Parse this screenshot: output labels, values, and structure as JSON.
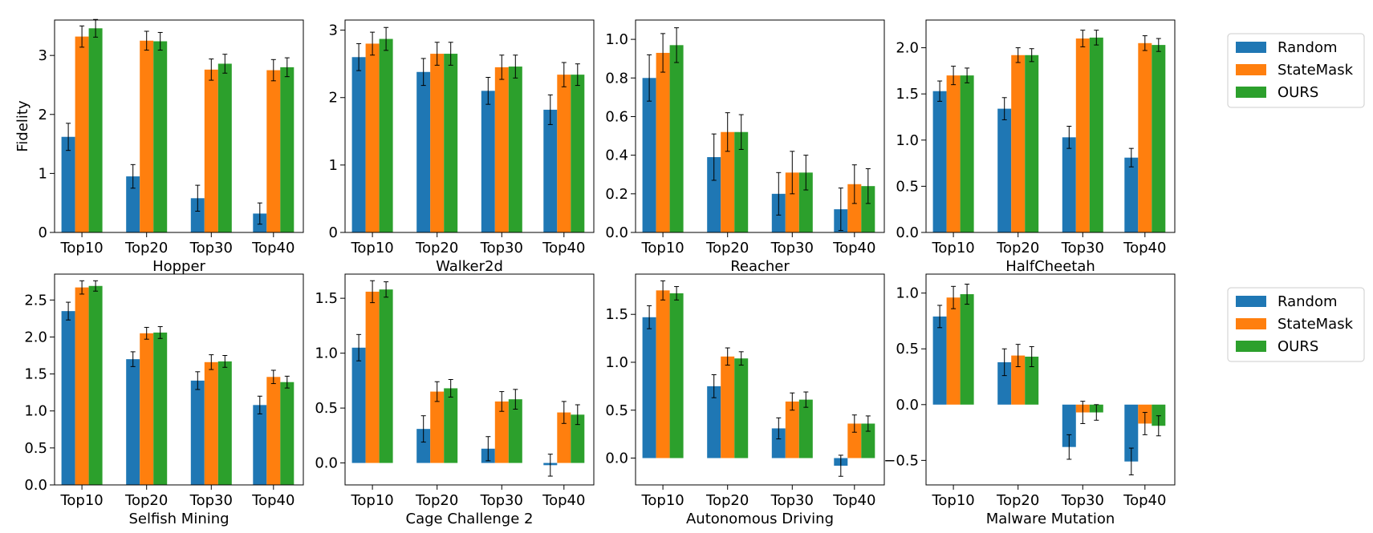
{
  "chart_data": [
    {
      "type": "bar",
      "xlabel": "Hopper",
      "ylabel": "Fidelity",
      "categories": [
        "Top10",
        "Top20",
        "Top30",
        "Top40"
      ],
      "ylim": [
        0,
        3.6
      ],
      "yticks": [
        0,
        1,
        2,
        3
      ],
      "series": [
        {
          "name": "Random",
          "values": [
            1.62,
            0.95,
            0.58,
            0.32
          ],
          "errors": [
            0.23,
            0.2,
            0.22,
            0.18
          ]
        },
        {
          "name": "StateMask",
          "values": [
            3.32,
            3.25,
            2.76,
            2.75
          ],
          "errors": [
            0.18,
            0.16,
            0.18,
            0.18
          ]
        },
        {
          "name": "OURS",
          "values": [
            3.46,
            3.24,
            2.86,
            2.8
          ],
          "errors": [
            0.15,
            0.15,
            0.16,
            0.16
          ]
        }
      ]
    },
    {
      "type": "bar",
      "xlabel": "Walker2d",
      "ylabel": "",
      "categories": [
        "Top10",
        "Top20",
        "Top30",
        "Top40"
      ],
      "ylim": [
        0,
        3.15
      ],
      "yticks": [
        0,
        1,
        2,
        3
      ],
      "series": [
        {
          "name": "Random",
          "values": [
            2.6,
            2.38,
            2.1,
            1.82
          ],
          "errors": [
            0.2,
            0.2,
            0.2,
            0.22
          ]
        },
        {
          "name": "StateMask",
          "values": [
            2.8,
            2.65,
            2.45,
            2.34
          ],
          "errors": [
            0.17,
            0.17,
            0.18,
            0.18
          ]
        },
        {
          "name": "OURS",
          "values": [
            2.87,
            2.65,
            2.46,
            2.34
          ],
          "errors": [
            0.17,
            0.17,
            0.17,
            0.16
          ]
        }
      ]
    },
    {
      "type": "bar",
      "xlabel": "Reacher",
      "ylabel": "",
      "categories": [
        "Top10",
        "Top20",
        "Top30",
        "Top40"
      ],
      "ylim": [
        0,
        1.1
      ],
      "yticks": [
        0,
        0.2,
        0.4,
        0.6,
        0.8,
        1.0
      ],
      "series": [
        {
          "name": "Random",
          "values": [
            0.8,
            0.39,
            0.2,
            0.12
          ],
          "errors": [
            0.12,
            0.12,
            0.11,
            0.11
          ]
        },
        {
          "name": "StateMask",
          "values": [
            0.93,
            0.52,
            0.31,
            0.25
          ],
          "errors": [
            0.1,
            0.1,
            0.11,
            0.1
          ]
        },
        {
          "name": "OURS",
          "values": [
            0.97,
            0.52,
            0.31,
            0.24
          ],
          "errors": [
            0.09,
            0.09,
            0.09,
            0.09
          ]
        }
      ]
    },
    {
      "type": "bar",
      "xlabel": "HalfCheetah",
      "ylabel": "",
      "categories": [
        "Top10",
        "Top20",
        "Top30",
        "Top40"
      ],
      "ylim": [
        0,
        2.3
      ],
      "yticks": [
        0,
        0.5,
        1.0,
        1.5,
        2.0
      ],
      "series": [
        {
          "name": "Random",
          "values": [
            1.53,
            1.34,
            1.03,
            0.81
          ],
          "errors": [
            0.11,
            0.12,
            0.12,
            0.1
          ]
        },
        {
          "name": "StateMask",
          "values": [
            1.7,
            1.92,
            2.1,
            2.05
          ],
          "errors": [
            0.1,
            0.08,
            0.09,
            0.08
          ]
        },
        {
          "name": "OURS",
          "values": [
            1.7,
            1.92,
            2.11,
            2.03
          ],
          "errors": [
            0.08,
            0.07,
            0.08,
            0.07
          ]
        }
      ]
    },
    {
      "type": "bar",
      "xlabel": "Selfish Mining",
      "ylabel": "",
      "categories": [
        "Top10",
        "Top20",
        "Top30",
        "Top40"
      ],
      "ylim": [
        0,
        2.85
      ],
      "yticks": [
        0,
        0.5,
        1.0,
        1.5,
        2.0,
        2.5
      ],
      "series": [
        {
          "name": "Random",
          "values": [
            2.35,
            1.7,
            1.41,
            1.08
          ],
          "errors": [
            0.12,
            0.1,
            0.12,
            0.12
          ]
        },
        {
          "name": "StateMask",
          "values": [
            2.67,
            2.05,
            1.66,
            1.46
          ],
          "errors": [
            0.09,
            0.08,
            0.1,
            0.09
          ]
        },
        {
          "name": "OURS",
          "values": [
            2.69,
            2.06,
            1.67,
            1.39
          ],
          "errors": [
            0.07,
            0.08,
            0.08,
            0.08
          ]
        }
      ]
    },
    {
      "type": "bar",
      "xlabel": "Cage Challenge 2",
      "ylabel": "",
      "categories": [
        "Top10",
        "Top20",
        "Top30",
        "Top40"
      ],
      "ylim": [
        -0.2,
        1.72
      ],
      "yticks": [
        0.0,
        0.5,
        1.0,
        1.5
      ],
      "series": [
        {
          "name": "Random",
          "values": [
            1.05,
            0.31,
            0.13,
            -0.02
          ],
          "errors": [
            0.12,
            0.12,
            0.11,
            0.1
          ]
        },
        {
          "name": "StateMask",
          "values": [
            1.56,
            0.65,
            0.56,
            0.46
          ],
          "errors": [
            0.1,
            0.09,
            0.09,
            0.1
          ]
        },
        {
          "name": "OURS",
          "values": [
            1.58,
            0.68,
            0.58,
            0.44
          ],
          "errors": [
            0.07,
            0.08,
            0.09,
            0.09
          ]
        }
      ]
    },
    {
      "type": "bar",
      "xlabel": "Autonomous Driving",
      "ylabel": "",
      "categories": [
        "Top10",
        "Top20",
        "Top30",
        "Top40"
      ],
      "ylim": [
        -0.28,
        1.92
      ],
      "yticks": [
        0.0,
        0.5,
        1.0,
        1.5
      ],
      "series": [
        {
          "name": "Random",
          "values": [
            1.47,
            0.75,
            0.31,
            -0.08
          ],
          "errors": [
            0.12,
            0.12,
            0.11,
            0.11
          ]
        },
        {
          "name": "StateMask",
          "values": [
            1.75,
            1.06,
            0.59,
            0.36
          ],
          "errors": [
            0.1,
            0.09,
            0.09,
            0.09
          ]
        },
        {
          "name": "OURS",
          "values": [
            1.72,
            1.04,
            0.61,
            0.36
          ],
          "errors": [
            0.07,
            0.07,
            0.08,
            0.08
          ]
        }
      ]
    },
    {
      "type": "bar",
      "xlabel": "Malware Mutation",
      "ylabel": "",
      "categories": [
        "Top10",
        "Top20",
        "Top30",
        "Top40"
      ],
      "ylim": [
        -0.72,
        1.17
      ],
      "yticks": [
        -0.5,
        0.0,
        0.5,
        1.0
      ],
      "series": [
        {
          "name": "Random",
          "values": [
            0.79,
            0.38,
            -0.38,
            -0.51
          ],
          "errors": [
            0.1,
            0.12,
            0.11,
            0.12
          ]
        },
        {
          "name": "StateMask",
          "values": [
            0.96,
            0.44,
            -0.07,
            -0.17
          ],
          "errors": [
            0.1,
            0.1,
            0.1,
            0.1
          ]
        },
        {
          "name": "OURS",
          "values": [
            0.99,
            0.43,
            -0.07,
            -0.19
          ],
          "errors": [
            0.09,
            0.09,
            0.07,
            0.09
          ]
        }
      ]
    }
  ],
  "legends": [
    {
      "entries": [
        {
          "label": "Random",
          "color": "#1f77b4"
        },
        {
          "label": "StateMask",
          "color": "#ff7f0e"
        },
        {
          "label": "OURS",
          "color": "#2ca02c"
        }
      ]
    },
    {
      "entries": [
        {
          "label": "Random",
          "color": "#1f77b4"
        },
        {
          "label": "StateMask",
          "color": "#ff7f0e"
        },
        {
          "label": "OURS",
          "color": "#2ca02c"
        }
      ]
    }
  ],
  "colors": {
    "series": [
      "#1f77b4",
      "#ff7f0e",
      "#2ca02c"
    ],
    "error_bar": "#000000"
  }
}
